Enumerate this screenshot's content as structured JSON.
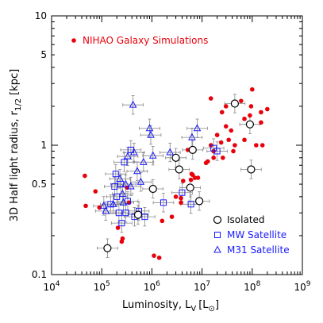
{
  "chart_data": {
    "type": "scatter",
    "title": "",
    "xlabel_text": "Luminosity, L",
    "xlabel_sub": "V",
    "xlabel_unit_open": "[L",
    "xlabel_sun": "⊙",
    "xlabel_unit_close": "]",
    "ylabel_text": "3D Half light radius, r",
    "ylabel_sub": "1/2",
    "ylabel_unit": "[kpc]",
    "x_scale": "log",
    "y_scale": "log",
    "xlim": [
      10000,
      1000000000
    ],
    "ylim": [
      0.1,
      10
    ],
    "x_ticks": [
      {
        "value": 10000,
        "mant": "10",
        "exp": "4"
      },
      {
        "value": 100000,
        "mant": "10",
        "exp": "5"
      },
      {
        "value": 1000000,
        "mant": "10",
        "exp": "6"
      },
      {
        "value": 10000000,
        "mant": "10",
        "exp": "7"
      },
      {
        "value": 100000000,
        "mant": "10",
        "exp": "8"
      },
      {
        "value": 1000000000,
        "mant": "10",
        "exp": "9"
      }
    ],
    "y_ticks": [
      {
        "value": 0.1,
        "label": "0.1"
      },
      {
        "value": 0.5,
        "label": "0.5"
      },
      {
        "value": 1,
        "label": "1"
      },
      {
        "value": 5,
        "label": "5"
      },
      {
        "value": 10,
        "label": "10"
      }
    ],
    "legend_location": "bottom-right",
    "colors": {
      "nihao": "#e8000b",
      "obs": "#000000",
      "satellites": "#1a1aff",
      "error_bars": "#888888"
    },
    "series": [
      {
        "name": "NIHAO Galaxy Simulations",
        "marker": "filled-circle",
        "color": "#e8000b",
        "points": [
          [
            46000,
            0.58
          ],
          [
            48000,
            0.34
          ],
          [
            75000,
            0.44
          ],
          [
            90000,
            0.33
          ],
          [
            210000,
            0.23
          ],
          [
            250000,
            0.18
          ],
          [
            260000,
            0.19
          ],
          [
            320000,
            0.47
          ],
          [
            350000,
            0.36
          ],
          [
            1100000,
            0.14
          ],
          [
            1400000,
            0.135
          ],
          [
            1600000,
            0.26
          ],
          [
            2500000,
            0.28
          ],
          [
            3000000,
            0.4
          ],
          [
            3800000,
            0.36
          ],
          [
            3800000,
            0.39
          ],
          [
            4200000,
            0.53
          ],
          [
            5200000,
            0.92
          ],
          [
            6000000,
            0.54
          ],
          [
            6200000,
            0.6
          ],
          [
            6500000,
            0.59
          ],
          [
            7200000,
            0.56
          ],
          [
            8300000,
            0.56
          ],
          [
            12000000,
            0.73
          ],
          [
            13000000,
            0.75
          ],
          [
            15000000,
            1.0
          ],
          [
            15000000,
            2.3
          ],
          [
            17000000,
            0.8
          ],
          [
            17000000,
            0.9
          ],
          [
            20000000,
            1.2
          ],
          [
            24000000,
            1.05
          ],
          [
            25000000,
            1.8
          ],
          [
            26000000,
            0.8
          ],
          [
            30000000,
            1.4
          ],
          [
            30000000,
            2.0
          ],
          [
            34000000,
            1.1
          ],
          [
            38000000,
            1.3
          ],
          [
            42000000,
            0.9
          ],
          [
            45000000,
            1.0
          ],
          [
            60000000,
            2.2
          ],
          [
            70000000,
            1.1
          ],
          [
            70000000,
            1.6
          ],
          [
            90000000,
            1.7
          ],
          [
            95000000,
            2.0
          ],
          [
            100000000,
            2.7
          ],
          [
            120000000,
            1.0
          ],
          [
            150000000,
            1.5
          ],
          [
            150000000,
            1.8
          ],
          [
            160000000,
            1.0
          ],
          [
            200000000,
            1.9
          ]
        ]
      },
      {
        "name": "Isolated",
        "marker": "open-circle",
        "color": "#000000",
        "points": [
          [
            130000,
            0.16
          ],
          [
            530000,
            0.29
          ],
          [
            1050000,
            0.46
          ],
          [
            3000000,
            0.8
          ],
          [
            3500000,
            0.65
          ],
          [
            5800000,
            0.47
          ],
          [
            6500000,
            0.92
          ],
          [
            8800000,
            0.37
          ],
          [
            45000000,
            2.1
          ],
          [
            90000000,
            1.45
          ],
          [
            95000000,
            0.65
          ]
        ]
      },
      {
        "name": "MW Satellite",
        "marker": "open-square",
        "color": "#1a1aff",
        "points": [
          [
            150000,
            0.35
          ],
          [
            180000,
            0.48
          ],
          [
            190000,
            0.6
          ],
          [
            200000,
            0.4
          ],
          [
            220000,
            0.3
          ],
          [
            240000,
            0.5
          ],
          [
            250000,
            0.25
          ],
          [
            280000,
            0.74
          ],
          [
            300000,
            0.3
          ],
          [
            330000,
            0.37
          ],
          [
            380000,
            0.92
          ],
          [
            450000,
            0.28
          ],
          [
            550000,
            0.31
          ],
          [
            720000,
            0.28
          ],
          [
            1700000,
            0.36
          ],
          [
            4000000,
            0.43
          ],
          [
            6000000,
            0.35
          ],
          [
            17000000,
            0.95
          ],
          [
            20000000,
            0.9
          ]
        ]
      },
      {
        "name": "M31 Satellite",
        "marker": "open-triangle",
        "color": "#1a1aff",
        "points": [
          [
            110000,
            0.34
          ],
          [
            120000,
            0.31
          ],
          [
            170000,
            0.35
          ],
          [
            230000,
            0.55
          ],
          [
            260000,
            0.42
          ],
          [
            270000,
            0.36
          ],
          [
            300000,
            0.5
          ],
          [
            330000,
            0.82
          ],
          [
            380000,
            0.48
          ],
          [
            420000,
            2.05
          ],
          [
            440000,
            0.88
          ],
          [
            510000,
            0.63
          ],
          [
            600000,
            0.52
          ],
          [
            680000,
            0.74
          ],
          [
            900000,
            1.35
          ],
          [
            950000,
            1.2
          ],
          [
            1050000,
            0.83
          ],
          [
            2300000,
            0.88
          ],
          [
            6300000,
            1.15
          ],
          [
            8000000,
            1.35
          ]
        ]
      }
    ]
  }
}
